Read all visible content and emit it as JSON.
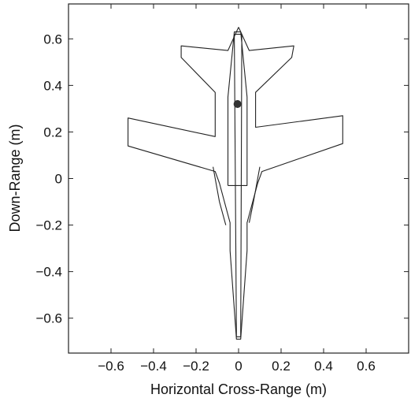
{
  "chart_data": {
    "type": "line",
    "xlabel": "Horizontal Cross-Range (m)",
    "ylabel": "Down-Range (m)",
    "xlim": [
      -0.8,
      0.8
    ],
    "ylim": [
      -0.75,
      0.75
    ],
    "grid": false,
    "x_ticks": [
      -0.6,
      -0.4,
      -0.2,
      0,
      0.2,
      0.4,
      0.6
    ],
    "x_tick_labels": [
      "−0.6",
      "−0.4",
      "−0.2",
      "0",
      "0.2",
      "0.4",
      "0.6"
    ],
    "y_ticks": [
      0.6,
      0.4,
      0.2,
      0,
      -0.2,
      -0.4,
      -0.6
    ],
    "y_tick_labels": [
      "0.6",
      "0.4",
      "0.2",
      "0",
      "−0.2",
      "−0.4",
      "−0.6"
    ],
    "series": [
      {
        "points": [
          [
            0,
            0.65
          ],
          [
            0.02,
            0.61
          ],
          [
            0.05,
            0.55
          ],
          [
            0.26,
            0.57
          ],
          [
            0.25,
            0.52
          ],
          [
            0.08,
            0.37
          ],
          [
            0.08,
            0.22
          ],
          [
            0.49,
            0.27
          ],
          [
            0.49,
            0.15
          ],
          [
            0.11,
            0.03
          ],
          [
            0.09,
            -0.02
          ],
          [
            0.04,
            -0.19
          ],
          [
            0.04,
            -0.31
          ],
          [
            0.01,
            -0.69
          ],
          [
            -0.01,
            -0.69
          ],
          [
            -0.04,
            -0.31
          ],
          [
            -0.04,
            -0.19
          ],
          [
            -0.09,
            -0.02
          ],
          [
            -0.11,
            0.03
          ],
          [
            -0.52,
            0.14
          ],
          [
            -0.52,
            0.26
          ],
          [
            -0.11,
            0.18
          ],
          [
            -0.11,
            0.37
          ],
          [
            -0.27,
            0.52
          ],
          [
            -0.27,
            0.57
          ],
          [
            -0.05,
            0.55
          ],
          [
            -0.02,
            0.61
          ],
          [
            0,
            0.65
          ]
        ]
      },
      {
        "points": [
          [
            -0.05,
            -0.03
          ],
          [
            0.04,
            -0.03
          ],
          [
            0.04,
            0.35
          ],
          [
            0.01,
            0.63
          ],
          [
            -0.02,
            0.63
          ],
          [
            -0.05,
            0.35
          ],
          [
            -0.05,
            -0.03
          ]
        ]
      },
      {
        "points": [
          [
            -0.02,
            0.62
          ],
          [
            0.015,
            0.62
          ],
          [
            0.01,
            -0.68
          ],
          [
            -0.01,
            -0.68
          ],
          [
            -0.02,
            0.62
          ]
        ]
      },
      {
        "points": [
          [
            -0.12,
            0.05
          ],
          [
            -0.09,
            -0.1
          ],
          [
            -0.06,
            -0.2
          ]
        ]
      },
      {
        "points": [
          [
            0.1,
            0.05
          ],
          [
            0.07,
            -0.1
          ],
          [
            0.05,
            -0.19
          ]
        ]
      }
    ],
    "markers": [
      {
        "x": -0.005,
        "y": 0.32
      }
    ]
  }
}
